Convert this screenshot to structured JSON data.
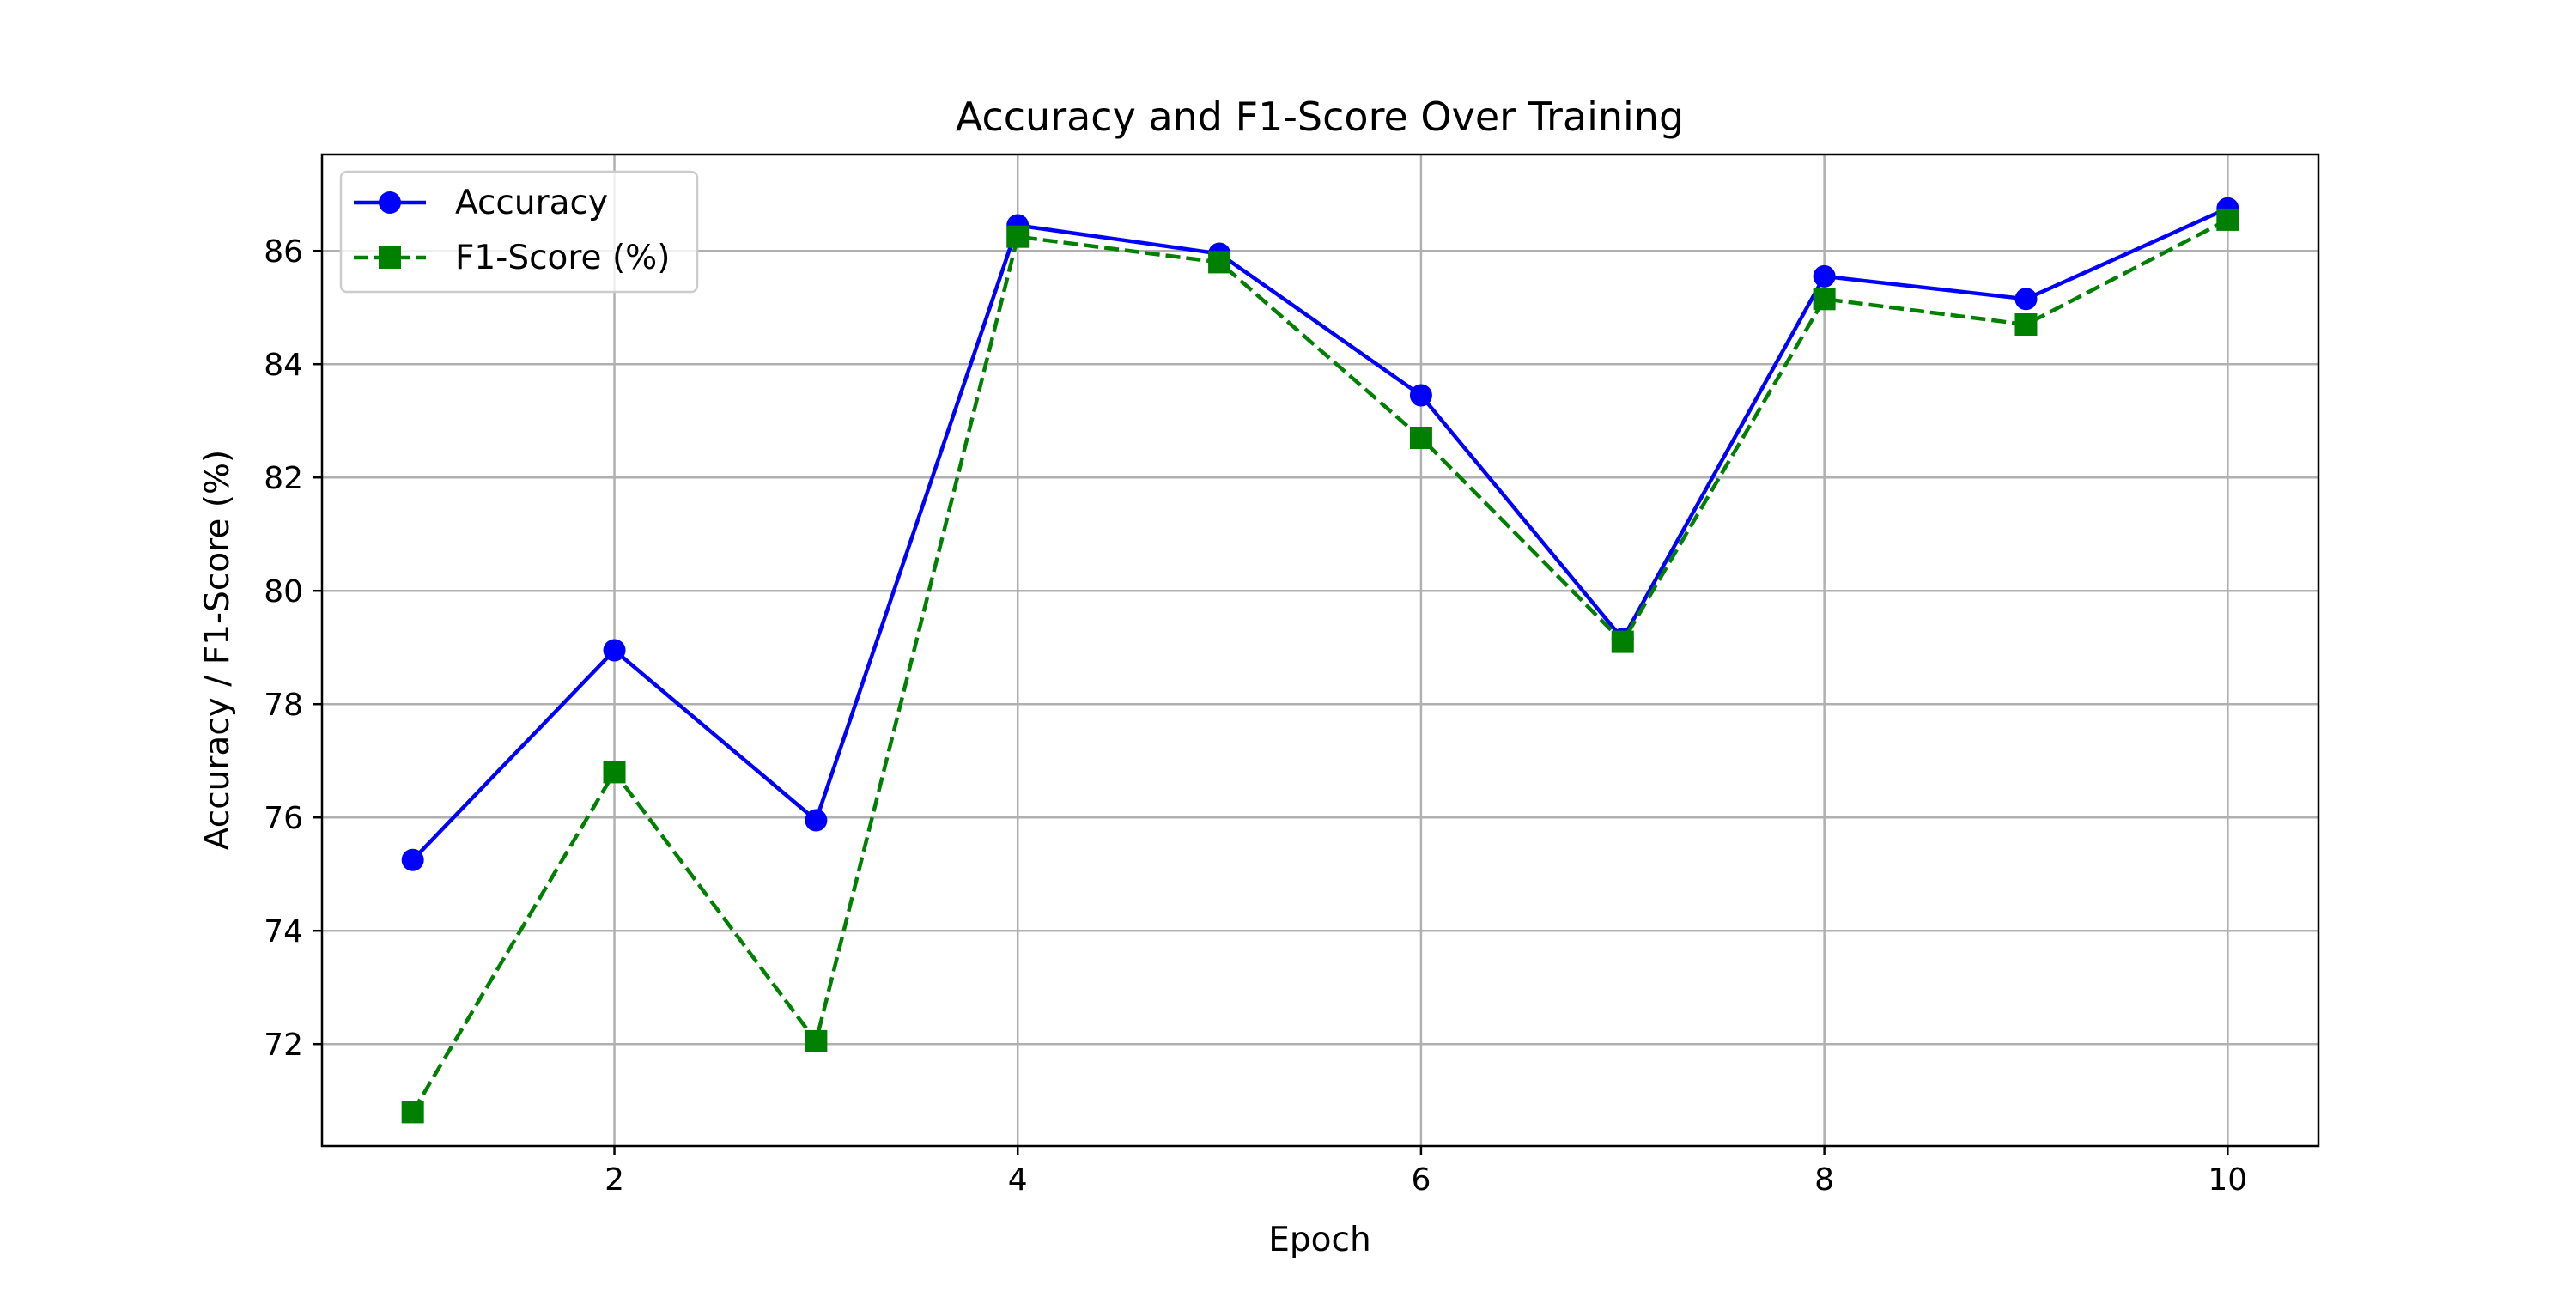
{
  "chart_data": {
    "type": "line",
    "title": "Accuracy and F1-Score Over Training",
    "xlabel": "Epoch",
    "ylabel": "Accuracy / F1-Score (%)",
    "x": [
      1,
      2,
      3,
      4,
      5,
      6,
      7,
      8,
      9,
      10
    ],
    "xlim": [
      0.55,
      10.45
    ],
    "ylim": [
      70.2,
      87.7
    ],
    "x_ticks": [
      2,
      4,
      6,
      8,
      10
    ],
    "y_ticks": [
      72,
      74,
      76,
      78,
      80,
      82,
      84,
      86
    ],
    "grid": true,
    "legend_position": "top-left",
    "series": [
      {
        "name": "Accuracy",
        "values": [
          75.25,
          78.95,
          75.95,
          86.45,
          85.95,
          83.45,
          79.15,
          85.55,
          85.15,
          86.75
        ],
        "color": "#0000ff",
        "line_style": "solid",
        "marker": "circle"
      },
      {
        "name": "F1-Score (%)",
        "values": [
          70.8,
          76.8,
          72.05,
          86.25,
          85.8,
          82.7,
          79.1,
          85.15,
          84.7,
          86.55
        ],
        "color": "#008000",
        "line_style": "dashed",
        "marker": "square"
      }
    ]
  }
}
